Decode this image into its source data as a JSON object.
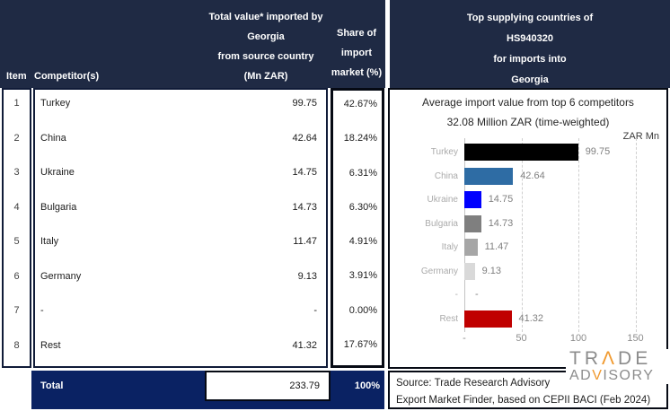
{
  "left_table": {
    "header": {
      "item": "Item",
      "competitor": "Competitor(s)",
      "value_lines": [
        "Total value* imported by",
        "Georgia",
        "from source country",
        "(Mn ZAR)"
      ],
      "share_lines": [
        "Share of",
        "import",
        "market (%)"
      ]
    },
    "rows": [
      {
        "item": "1",
        "competitor": "Turkey",
        "value": "99.75",
        "share": "42.67%"
      },
      {
        "item": "2",
        "competitor": "China",
        "value": "42.64",
        "share": "18.24%"
      },
      {
        "item": "3",
        "competitor": "Ukraine",
        "value": "14.75",
        "share": "6.31%"
      },
      {
        "item": "4",
        "competitor": "Bulgaria",
        "value": "14.73",
        "share": "6.30%"
      },
      {
        "item": "5",
        "competitor": "Italy",
        "value": "11.47",
        "share": "4.91%"
      },
      {
        "item": "6",
        "competitor": "Germany",
        "value": "9.13",
        "share": "3.91%"
      },
      {
        "item": "7",
        "competitor": "-",
        "value": "-",
        "share": "0.00%"
      },
      {
        "item": "8",
        "competitor": "Rest",
        "value": "41.32",
        "share": "17.67%"
      }
    ],
    "total": {
      "label": "Total",
      "value": "233.79",
      "share": "100%"
    }
  },
  "right_panel": {
    "header_lines": [
      "Top supplying countries of",
      "HS940320",
      "for imports into",
      "Georgia"
    ]
  },
  "chart_data": {
    "type": "bar",
    "orientation": "horizontal",
    "title": "Average import value from top 6 competitors",
    "subtitle": "32.08 Million ZAR (time-weighted)",
    "unit_label": "ZAR Mn",
    "categories": [
      "Turkey",
      "China",
      "Ukraine",
      "Bulgaria",
      "Italy",
      "Germany",
      "-",
      "Rest"
    ],
    "values": [
      99.75,
      42.64,
      14.75,
      14.73,
      11.47,
      9.13,
      null,
      41.32
    ],
    "value_labels": [
      "99.75",
      "42.64",
      "14.75",
      "14.73",
      "11.47",
      "9.13",
      "-",
      "41.32"
    ],
    "bar_colors": [
      "#000000",
      "#2E6CA4",
      "#0000FE",
      "#7F7F7F",
      "#A6A6A6",
      "#D9D9D9",
      null,
      "#C00000"
    ],
    "xlim": [
      0,
      150
    ],
    "xticks": [
      {
        "value": 0,
        "label": "-"
      },
      {
        "value": 50,
        "label": "50"
      },
      {
        "value": 100,
        "label": "100"
      },
      {
        "value": 150,
        "label": "150"
      }
    ],
    "grid": "vertical-dashed",
    "legend": "none"
  },
  "source_box": {
    "lines": [
      "Source: Trade Research Advisory",
      "Export Market Finder, based on CEPII BACI (Feb 2024)"
    ]
  },
  "logo": {
    "text": "TRADE ADVISORY",
    "line1": {
      "0": "TR",
      "1": "Λ",
      "2": "DE"
    },
    "line2": {
      "0": "AD",
      "1": "V",
      "2": "ISORY"
    },
    "colors": {
      "gray": "#8C8C8C",
      "orange": "#F0992E"
    }
  },
  "colors": {
    "header_navy": "#1F2A44",
    "total_navy": "#0A2263",
    "border_dark": "#060A14",
    "china_blue": "#2E6CA4",
    "ukraine_blue": "#0000FE",
    "rest_red": "#C00000"
  }
}
